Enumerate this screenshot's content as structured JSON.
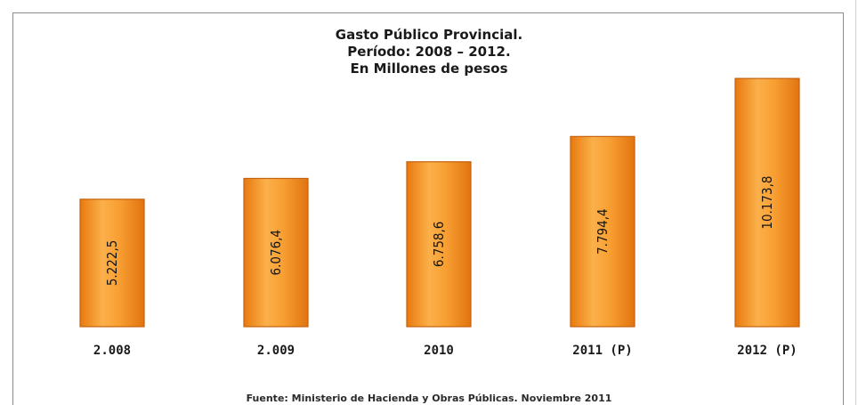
{
  "chart_data": {
    "type": "bar",
    "title": [
      "Gasto Público Provincial.",
      "Período: 2008 – 2012.",
      "En Millones de pesos"
    ],
    "categories": [
      "2.008",
      "2.009",
      "2010",
      "2011 (P)",
      "2012 (P)"
    ],
    "values": [
      5222.5,
      6076.4,
      6758.6,
      7794.4,
      10173.8
    ],
    "value_labels": [
      "5.222,5",
      "6.076,4",
      "6.758,6",
      "7.794,4",
      "10.173,8"
    ],
    "xlabel": "",
    "ylabel": "",
    "ylim": [
      0,
      11200
    ],
    "grid": false,
    "legend": "none",
    "bar_color": "#f7931e",
    "bar_edge_color": "#c4620d"
  },
  "source": "Fuente: Ministerio de Hacienda y Obras Públicas. Noviembre 2011"
}
